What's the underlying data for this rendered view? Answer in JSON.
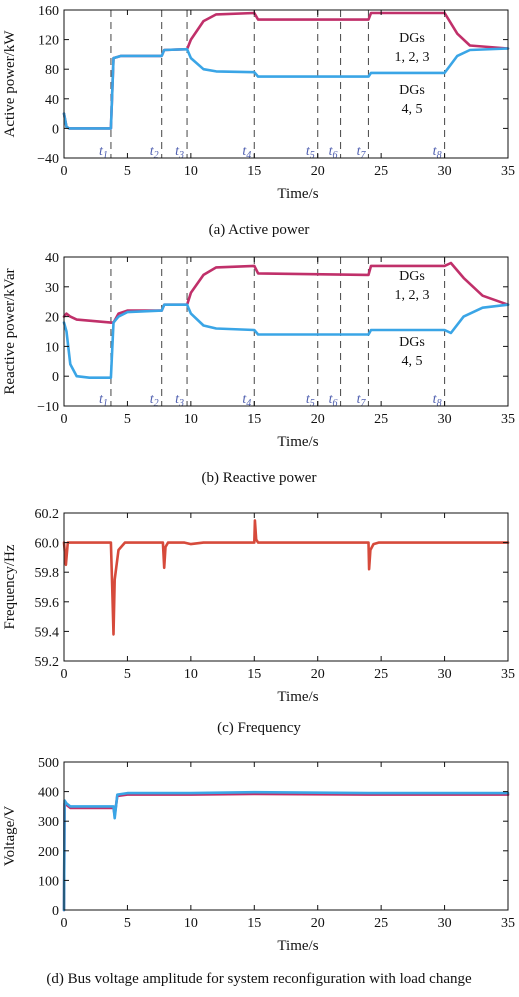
{
  "chart_data": [
    {
      "type": "line",
      "caption": "(a) Active power",
      "xlabel": "Time/s",
      "ylabel": "Active power/kW",
      "xlim": [
        0,
        35
      ],
      "ylim": [
        -40,
        160
      ],
      "xticks": [
        "0",
        "5",
        "10",
        "15",
        "20",
        "25",
        "30",
        "35"
      ],
      "yticks": [
        "−40",
        "0",
        "40",
        "80",
        "120",
        "160"
      ],
      "event_markers": [
        {
          "label": "t1",
          "time": 3.7
        },
        {
          "label": "t2",
          "time": 7.7
        },
        {
          "label": "t3",
          "time": 9.7
        },
        {
          "label": "t4",
          "time": 15
        },
        {
          "label": "t5",
          "time": 20
        },
        {
          "label": "t6",
          "time": 21.8
        },
        {
          "label": "t7",
          "time": 24
        },
        {
          "label": "t8",
          "time": 30
        }
      ],
      "annotations": [
        {
          "lines": [
            "DGs",
            "1, 2, 3"
          ]
        },
        {
          "lines": [
            "DGs",
            "4, 5"
          ]
        }
      ],
      "series": [
        {
          "color": "#c0306a",
          "x": [
            0,
            0.2,
            0.4,
            3.7,
            3.9,
            4.5,
            7.7,
            7.9,
            9.7,
            10,
            11,
            12,
            15,
            15.3,
            24,
            24.2,
            30,
            31,
            32,
            35
          ],
          "y": [
            20,
            2,
            0,
            0,
            95,
            98,
            98,
            106,
            107,
            120,
            145,
            154,
            156,
            147,
            147,
            156,
            156,
            128,
            112,
            108
          ]
        },
        {
          "color": "#3aa5e6",
          "x": [
            0,
            0.2,
            0.4,
            3.7,
            3.9,
            4.5,
            7.7,
            7.9,
            9.7,
            10,
            11,
            12,
            15,
            15.3,
            24,
            24.2,
            30,
            31,
            32,
            35
          ],
          "y": [
            20,
            2,
            0,
            0,
            95,
            98,
            98,
            106,
            107,
            95,
            80,
            77,
            76,
            70,
            70,
            75,
            75,
            98,
            106,
            108
          ]
        }
      ]
    },
    {
      "type": "line",
      "caption": "(b) Reactive power",
      "xlabel": "Time/s",
      "ylabel": "Reactive power/kVar",
      "xlim": [
        0,
        35
      ],
      "ylim": [
        -10,
        40
      ],
      "xticks": [
        "0",
        "5",
        "10",
        "15",
        "20",
        "25",
        "30",
        "35"
      ],
      "yticks": [
        "−10",
        "0",
        "10",
        "20",
        "30",
        "40"
      ],
      "event_markers": [
        {
          "label": "t1",
          "time": 3.7
        },
        {
          "label": "t2",
          "time": 7.7
        },
        {
          "label": "t3",
          "time": 9.7
        },
        {
          "label": "t4",
          "time": 15
        },
        {
          "label": "t5",
          "time": 20
        },
        {
          "label": "t6",
          "time": 21.8
        },
        {
          "label": "t7",
          "time": 24
        },
        {
          "label": "t8",
          "time": 30
        }
      ],
      "annotations": [
        {
          "lines": [
            "DGs",
            "1, 2, 3"
          ]
        },
        {
          "lines": [
            "DGs",
            "4, 5"
          ]
        }
      ],
      "series": [
        {
          "color": "#c0306a",
          "x": [
            0,
            0.2,
            0.5,
            1,
            3.7,
            3.9,
            4.3,
            5,
            7.7,
            7.9,
            9.7,
            10,
            11,
            12,
            15,
            15.3,
            24,
            24.2,
            30,
            30.5,
            31.5,
            33,
            35
          ],
          "y": [
            20,
            21,
            20,
            19,
            18,
            18,
            21,
            22,
            22,
            24,
            24,
            28,
            34,
            36.5,
            37,
            34.5,
            34,
            37,
            37,
            38,
            33,
            27,
            24
          ]
        },
        {
          "color": "#3aa5e6",
          "x": [
            0,
            0.2,
            0.5,
            1,
            2,
            3.7,
            3.9,
            4.3,
            5,
            7.7,
            7.9,
            9.7,
            10,
            11,
            12,
            15,
            15.3,
            24,
            24.2,
            30,
            30.5,
            31.5,
            33,
            35
          ],
          "y": [
            18,
            15,
            4,
            0,
            -0.5,
            -0.5,
            18,
            20,
            21.5,
            22,
            24,
            24,
            21,
            17,
            16,
            15.5,
            14,
            14,
            15.5,
            15.5,
            14.5,
            20,
            23,
            24
          ]
        }
      ]
    },
    {
      "type": "line",
      "caption": "(c) Frequency",
      "xlabel": "Time/s",
      "ylabel": "Frequency/Hz",
      "xlim": [
        0,
        35
      ],
      "ylim": [
        59.2,
        60.2
      ],
      "xticks": [
        "0",
        "5",
        "10",
        "15",
        "20",
        "25",
        "30",
        "35"
      ],
      "yticks": [
        "59.2",
        "59.4",
        "59.6",
        "59.8",
        "60.0",
        "60.2"
      ],
      "series": [
        {
          "color": "#d64a3b",
          "x": [
            0,
            0.15,
            0.3,
            3.7,
            3.8,
            3.9,
            4.0,
            4.3,
            4.8,
            7.8,
            7.9,
            8.0,
            8.2,
            8.4,
            9.5,
            10,
            11,
            15,
            15.05,
            15.15,
            15.3,
            24,
            24.05,
            24.15,
            24.4,
            24.8,
            35
          ],
          "y": [
            60.0,
            59.85,
            60.0,
            60.0,
            59.7,
            59.38,
            59.75,
            59.95,
            60.0,
            60.0,
            59.83,
            59.97,
            60.0,
            60.0,
            60.0,
            59.99,
            60.0,
            60.0,
            60.15,
            60.02,
            60.0,
            60.0,
            59.82,
            59.95,
            59.99,
            60.0,
            60.0
          ]
        }
      ]
    },
    {
      "type": "line",
      "caption": "(d) Bus voltage amplitude for system reconfiguration with load change",
      "xlabel": "Time/s",
      "ylabel": "Voltage/V",
      "xlim": [
        0,
        35
      ],
      "ylim": [
        0,
        500
      ],
      "xticks": [
        "0",
        "5",
        "10",
        "15",
        "20",
        "25",
        "30",
        "35"
      ],
      "yticks": [
        "0",
        "100",
        "200",
        "300",
        "400",
        "500"
      ],
      "series": [
        {
          "color": "#c0306a",
          "x": [
            0,
            0.05,
            0.2,
            0.5,
            3.9,
            4.0,
            4.2,
            5,
            8,
            10,
            15,
            24,
            30,
            35
          ],
          "y": [
            0,
            360,
            355,
            345,
            345,
            320,
            385,
            390,
            390,
            390,
            392,
            390,
            390,
            390
          ]
        },
        {
          "color": "#3aa5e6",
          "x": [
            0,
            0.05,
            0.2,
            0.5,
            3.9,
            4.0,
            4.2,
            5,
            8,
            10,
            15,
            24,
            30,
            35
          ],
          "y": [
            0,
            370,
            360,
            350,
            350,
            310,
            390,
            395,
            395,
            395,
            398,
            395,
            395,
            395
          ]
        }
      ]
    }
  ]
}
